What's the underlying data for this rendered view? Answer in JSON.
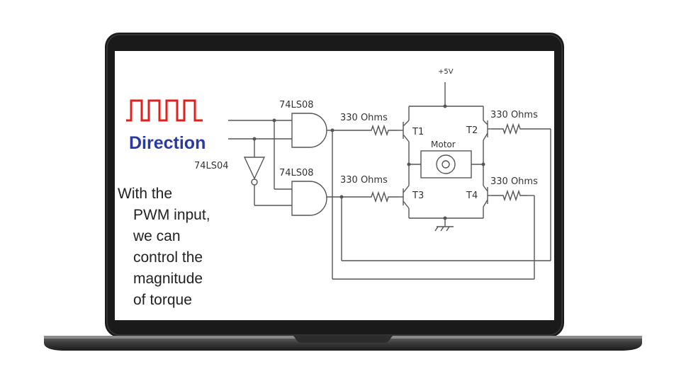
{
  "diagram": {
    "pwm_signal_icon": "square-wave-icon",
    "direction_label": "Direction",
    "description_lines": [
      "With the",
      "PWM input,",
      "we can",
      "control the",
      "magnitude",
      "of torque"
    ],
    "gate_top_label": "74LS08",
    "gate_bottom_label": "74LS08",
    "inverter_label": "74LS04",
    "supply_label": "+5V",
    "resistor_t1_label": "330 Ohms",
    "resistor_t2_label": "330 Ohms",
    "resistor_t3_label": "330 Ohms",
    "resistor_t4_label": "330 Ohms",
    "t1_label": "T1",
    "t2_label": "T2",
    "t3_label": "T3",
    "t4_label": "T4",
    "motor_label": "Motor"
  },
  "colors": {
    "pwm_wave": "#e0201c",
    "direction_text": "#2a3aa0",
    "wire": "#555555",
    "bezel": "#1a1a1a"
  }
}
